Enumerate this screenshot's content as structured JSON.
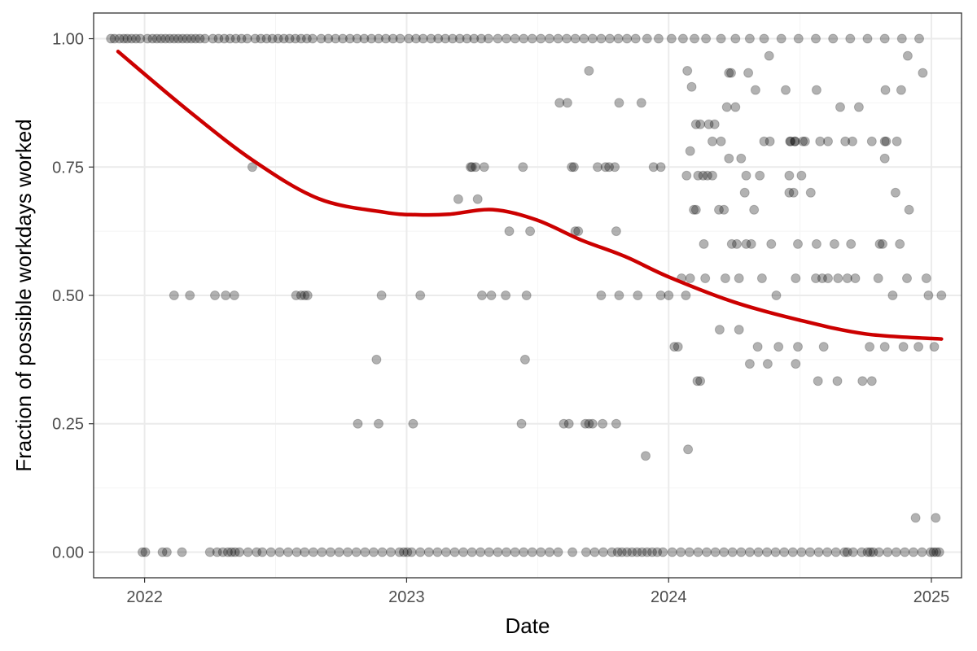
{
  "chart_data": {
    "type": "scatter",
    "title": "",
    "xlabel": "Date",
    "ylabel": "Fraction of possible workdays worked",
    "x_ticks": [
      "2022",
      "2023",
      "2024",
      "2025"
    ],
    "y_ticks": [
      "0.00",
      "0.25",
      "0.50",
      "0.75",
      "1.00"
    ],
    "xlim": [
      "2021-10-22",
      "2025-02-12"
    ],
    "ylim": [
      -0.05,
      1.05
    ],
    "grid": true,
    "legend": "none",
    "colors": {
      "points": "#000000",
      "trend": "#cc0000",
      "grid": "#ebebeb",
      "border": "#333333"
    },
    "series": [
      {
        "type": "scatter",
        "x": [
          "2021-11-15",
          "2021-11-20",
          "2021-11-27",
          "2021-12-03",
          "2021-12-08",
          "2021-12-14",
          "2021-12-20",
          "2021-12-26",
          "2022-01-05",
          "2022-01-12",
          "2022-01-18",
          "2022-01-24",
          "2022-01-30",
          "2022-02-05",
          "2022-02-11",
          "2022-02-17",
          "2022-02-23",
          "2022-03-01",
          "2022-03-07",
          "2022-03-13",
          "2022-03-19",
          "2022-03-26",
          "2022-04-06",
          "2022-04-14",
          "2022-04-22",
          "2022-04-30",
          "2022-05-08",
          "2022-05-16",
          "2022-05-24",
          "2022-06-04",
          "2022-06-12",
          "2022-06-20",
          "2022-06-28",
          "2022-07-06",
          "2022-07-14",
          "2022-07-22",
          "2022-07-30",
          "2022-08-07",
          "2022-08-15",
          "2022-08-23",
          "2022-09-04",
          "2022-09-14",
          "2022-09-24",
          "2022-10-04",
          "2022-10-14",
          "2022-10-24",
          "2022-11-03",
          "2022-11-13",
          "2022-11-23",
          "2022-12-03",
          "2022-12-13",
          "2022-12-23",
          "2023-01-04",
          "2023-01-14",
          "2023-01-24",
          "2023-02-04",
          "2023-02-14",
          "2023-02-24",
          "2023-03-06",
          "2023-03-16",
          "2023-03-26",
          "2023-04-05",
          "2023-04-15",
          "2023-04-25",
          "2023-05-08",
          "2023-05-20",
          "2023-06-01",
          "2023-06-13",
          "2023-06-25",
          "2023-07-07",
          "2023-07-19",
          "2023-07-31",
          "2023-08-12",
          "2023-08-24",
          "2023-09-05",
          "2023-09-17",
          "2023-09-29",
          "2023-10-11",
          "2023-10-23",
          "2023-11-04",
          "2023-11-16",
          "2023-12-02",
          "2023-12-18",
          "2024-01-05",
          "2024-01-21",
          "2024-02-06",
          "2024-02-22",
          "2024-03-14",
          "2024-04-03",
          "2024-04-23",
          "2024-05-13",
          "2024-06-06",
          "2024-06-30",
          "2024-07-24",
          "2024-08-17",
          "2024-09-10",
          "2024-10-04",
          "2024-10-28",
          "2024-11-21",
          "2024-12-15",
          "2021-12-29",
          "2022-01-02",
          "2022-01-26",
          "2022-02-01",
          "2022-02-22",
          "2022-04-02",
          "2022-04-12",
          "2022-04-20",
          "2022-04-27",
          "2022-05-02",
          "2022-05-07",
          "2022-05-13",
          "2022-05-25",
          "2022-06-06",
          "2022-06-14",
          "2022-06-26",
          "2022-07-08",
          "2022-07-20",
          "2022-08-01",
          "2022-08-12",
          "2022-08-24",
          "2022-09-05",
          "2022-09-17",
          "2022-09-29",
          "2022-10-11",
          "2022-10-23",
          "2022-11-04",
          "2022-11-16",
          "2022-11-28",
          "2022-12-10",
          "2022-12-22",
          "2022-12-28",
          "2023-01-02",
          "2023-01-08",
          "2023-01-20",
          "2023-02-01",
          "2023-02-13",
          "2023-02-25",
          "2023-03-09",
          "2023-03-21",
          "2023-04-02",
          "2023-04-14",
          "2023-04-26",
          "2023-05-08",
          "2023-05-20",
          "2023-06-01",
          "2023-06-13",
          "2023-06-25",
          "2023-07-07",
          "2023-07-19",
          "2023-07-31",
          "2023-08-20",
          "2023-09-08",
          "2023-09-20",
          "2023-10-02",
          "2023-10-14",
          "2023-10-22",
          "2023-10-28",
          "2023-11-04",
          "2023-11-11",
          "2023-11-18",
          "2023-11-25",
          "2023-12-02",
          "2023-12-09",
          "2023-12-16",
          "2023-12-24",
          "2024-01-06",
          "2024-01-18",
          "2024-01-30",
          "2024-02-11",
          "2024-02-23",
          "2024-03-06",
          "2024-03-18",
          "2024-03-30",
          "2024-04-11",
          "2024-04-23",
          "2024-05-05",
          "2024-05-17",
          "2024-05-29",
          "2024-06-10",
          "2024-06-22",
          "2024-07-04",
          "2024-07-16",
          "2024-07-28",
          "2024-08-09",
          "2024-08-21",
          "2024-09-02",
          "2024-09-06",
          "2024-09-14",
          "2024-09-26",
          "2024-10-04",
          "2024-10-08",
          "2024-10-12",
          "2024-10-20",
          "2024-11-01",
          "2024-11-13",
          "2024-11-25",
          "2024-12-07",
          "2024-12-19",
          "2024-12-31",
          "2025-01-04",
          "2025-01-08",
          "2025-01-12",
          "2022-02-11",
          "2022-03-05",
          "2022-04-09",
          "2022-04-24",
          "2022-05-06",
          "2022-07-31",
          "2022-08-07",
          "2022-08-12",
          "2022-08-16",
          "2022-11-27",
          "2023-01-20",
          "2023-04-16",
          "2023-04-29",
          "2023-05-19",
          "2023-06-17",
          "2023-09-29",
          "2023-10-24",
          "2023-11-19",
          "2023-12-21",
          "2024-01-01",
          "2024-01-25",
          "2024-05-30",
          "2024-11-08",
          "2024-12-28",
          "2025-01-15",
          "2022-05-31",
          "2023-03-31",
          "2023-04-02",
          "2023-04-07",
          "2023-04-19",
          "2023-06-12",
          "2023-08-19",
          "2023-08-22",
          "2023-09-24",
          "2023-10-05",
          "2023-10-10",
          "2023-10-18",
          "2023-12-11",
          "2023-12-21",
          "2022-10-25",
          "2022-11-23",
          "2023-01-10",
          "2023-06-10",
          "2023-08-08",
          "2023-08-15",
          "2023-09-07",
          "2023-09-12",
          "2023-09-17",
          "2023-10-01",
          "2023-10-20",
          "2022-11-20",
          "2023-05-24",
          "2023-06-15",
          "2023-06-22",
          "2023-08-02",
          "2023-08-28",
          "2023-10-20",
          "2023-04-10",
          "2023-03-14",
          "2023-08-24",
          "2023-08-13",
          "2023-09-12",
          "2023-11-24",
          "2023-10-24",
          "2023-11-30",
          "2024-01-27",
          "2024-02-02",
          "2024-02-14",
          "2024-02-08",
          "2024-01-31",
          "2024-02-26",
          "2024-03-05",
          "2024-03-25",
          "2024-03-28",
          "2024-04-21",
          "2024-05-20",
          "2024-06-12",
          "2024-06-25",
          "2024-07-06",
          "2024-08-27",
          "2024-10-29",
          "2024-11-29",
          "2024-12-20",
          "2024-01-26",
          "2024-02-11",
          "2024-02-18",
          "2024-02-24",
          "2024-03-02",
          "2024-03-22",
          "2024-04-03",
          "2024-04-18",
          "2024-05-07",
          "2024-06-17",
          "2024-07-04",
          "2024-08-10",
          "2024-09-03",
          "2024-09-13",
          "2024-09-22",
          "2024-10-10",
          "2024-10-30",
          "2024-11-20",
          "2024-02-05",
          "2024-02-08",
          "2024-03-11",
          "2024-03-18",
          "2024-03-25",
          "2024-04-11",
          "2024-04-16",
          "2024-04-29",
          "2024-06-17",
          "2024-06-23",
          "2024-07-17",
          "2024-08-02",
          "2024-08-10",
          "2024-08-24",
          "2024-09-06",
          "2024-10-21",
          "2024-11-12",
          "2024-02-19",
          "2024-03-29",
          "2024-04-05",
          "2024-04-18",
          "2024-04-25",
          "2024-05-23",
          "2024-06-29",
          "2024-07-25",
          "2024-08-19",
          "2024-09-11",
          "2024-10-25",
          "2024-11-18",
          "2024-12-01",
          "2024-01-09",
          "2024-01-14",
          "2024-03-12",
          "2024-04-08",
          "2024-05-04",
          "2024-06-02",
          "2024-06-29",
          "2024-08-04",
          "2024-10-07",
          "2024-10-28",
          "2024-11-23",
          "2024-12-14",
          "2025-01-05",
          "2024-01-19",
          "2024-01-31",
          "2024-02-21",
          "2024-03-20",
          "2024-04-08",
          "2024-05-10",
          "2024-06-26",
          "2024-07-24",
          "2024-09-17",
          "2024-10-19",
          "2024-11-28",
          "2024-12-25",
          "2024-01-28",
          "2024-02-10",
          "2024-02-14",
          "2024-04-23",
          "2024-05-18",
          "2024-06-26",
          "2024-07-27",
          "2024-08-23",
          "2024-09-27",
          "2024-10-10",
          "2024-12-10",
          "2025-01-07",
          "2024-05-01",
          "2024-07-25",
          "2024-03-14",
          "2024-05-13",
          "2024-06-19",
          "2024-10-28",
          "2024-11-14",
          "2024-03-02",
          "2024-05-21",
          "2024-06-18",
          "2024-06-25",
          "2024-07-09",
          "2024-07-30",
          "2024-10-28"
        ],
        "y": [
          1,
          1,
          1,
          1,
          1,
          1,
          1,
          1,
          1,
          1,
          1,
          1,
          1,
          1,
          1,
          1,
          1,
          1,
          1,
          1,
          1,
          1,
          1,
          1,
          1,
          1,
          1,
          1,
          1,
          1,
          1,
          1,
          1,
          1,
          1,
          1,
          1,
          1,
          1,
          1,
          1,
          1,
          1,
          1,
          1,
          1,
          1,
          1,
          1,
          1,
          1,
          1,
          1,
          1,
          1,
          1,
          1,
          1,
          1,
          1,
          1,
          1,
          1,
          1,
          1,
          1,
          1,
          1,
          1,
          1,
          1,
          1,
          1,
          1,
          1,
          1,
          1,
          1,
          1,
          1,
          1,
          1,
          1,
          1,
          1,
          1,
          1,
          1,
          1,
          1,
          1,
          1,
          1,
          1,
          1,
          1,
          1,
          1,
          1,
          1,
          0,
          0,
          0,
          0,
          0,
          0,
          0,
          0,
          0,
          0,
          0,
          0,
          0,
          0,
          0,
          0,
          0,
          0,
          0,
          0,
          0,
          0,
          0,
          0,
          0,
          0,
          0,
          0,
          0,
          0,
          0,
          0,
          0,
          0,
          0,
          0,
          0,
          0,
          0,
          0,
          0,
          0,
          0,
          0,
          0,
          0,
          0,
          0,
          0,
          0,
          0,
          0,
          0,
          0,
          0,
          0,
          0,
          0,
          0,
          0,
          0,
          0,
          0,
          0,
          0,
          0,
          0,
          0,
          0,
          0,
          0,
          0,
          0,
          0,
          0,
          0,
          0,
          0,
          0,
          0,
          0,
          0,
          0,
          0,
          0,
          0,
          0,
          0,
          0,
          0,
          0,
          0,
          0,
          0,
          0,
          0,
          0,
          0,
          0,
          0,
          0,
          0,
          0,
          0.5,
          0.5,
          0.5,
          0.5,
          0.5,
          0.5,
          0.5,
          0.5,
          0.5,
          0.5,
          0.5,
          0.5,
          0.5,
          0.5,
          0.5,
          0.5,
          0.5,
          0.5,
          0.5,
          0.5,
          0.5,
          0.5,
          0.5,
          0.5,
          0.5,
          0.75,
          0.75,
          0.75,
          0.75,
          0.75,
          0.75,
          0.75,
          0.75,
          0.75,
          0.75,
          0.75,
          0.75,
          0.75,
          0.75,
          0.25,
          0.25,
          0.25,
          0.25,
          0.25,
          0.25,
          0.25,
          0.25,
          0.25,
          0.25,
          0.25,
          0.375,
          0.625,
          0.375,
          0.625,
          0.875,
          0.625,
          0.625,
          0.6875,
          0.6875,
          0.625,
          0.875,
          0.9375,
          0.875,
          0.875,
          0.1875,
          0.9375,
          0.90625,
          0.8333,
          0.8333,
          0.78125,
          0.8333,
          0.8333,
          0.9333,
          0.9333,
          0.9333,
          0.9667,
          0.9,
          0.8,
          0.8,
          0.8667,
          0.9,
          0.9667,
          0.9333,
          0.7333,
          0.7333,
          0.7333,
          0.7333,
          0.7333,
          0.8667,
          0.8667,
          0.7333,
          0.7333,
          0.7333,
          0.7333,
          0.8,
          0.8,
          0.8,
          0.8667,
          0.8,
          0.8,
          0.9,
          0.6667,
          0.6667,
          0.6667,
          0.6667,
          0.7667,
          0.7667,
          0.7,
          0.6667,
          0.7,
          0.7,
          0.7,
          0.5333,
          0.5333,
          0.5333,
          0.5333,
          0.6,
          0.7,
          0.6,
          0.6,
          0.6,
          0.6,
          0.6,
          0.6,
          0.6,
          0.6,
          0.6,
          0.6,
          0.6,
          0.6,
          0.6667,
          0.4,
          0.4,
          0.4333,
          0.4333,
          0.4,
          0.4,
          0.4,
          0.4,
          0.4,
          0.4,
          0.4,
          0.4,
          0.4,
          0.5333,
          0.5333,
          0.5333,
          0.5333,
          0.5333,
          0.5333,
          0.5333,
          0.5333,
          0.5333,
          0.5333,
          0.5333,
          0.5333,
          0.2,
          0.3333,
          0.3333,
          0.3667,
          0.3667,
          0.3667,
          0.3333,
          0.3333,
          0.3333,
          0.3333,
          0.0667,
          0.0667,
          0.9,
          0.9,
          0.8,
          0.8,
          0.8,
          0.8,
          0.8,
          0.8,
          0.8,
          0.8,
          0.8,
          0.8,
          0.8,
          0.7667
        ]
      },
      {
        "type": "line",
        "x": [
          "2021-11-25",
          "2022-03-01",
          "2022-06-01",
          "2022-09-01",
          "2022-12-01",
          "2023-01-15",
          "2023-03-01",
          "2023-05-01",
          "2023-07-01",
          "2023-09-01",
          "2023-11-01",
          "2024-01-01",
          "2024-04-01",
          "2024-07-01",
          "2024-10-01",
          "2025-01-15"
        ],
        "y": [
          0.975,
          0.862,
          0.763,
          0.688,
          0.662,
          0.657,
          0.658,
          0.667,
          0.647,
          0.608,
          0.576,
          0.536,
          0.487,
          0.452,
          0.425,
          0.415
        ]
      }
    ]
  }
}
